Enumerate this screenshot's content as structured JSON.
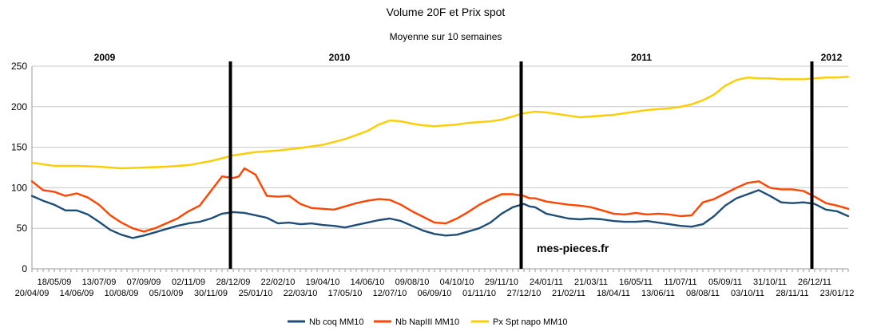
{
  "chart_data": {
    "type": "line",
    "title": "Volume 20F et Prix spot",
    "subtitle": "Moyenne sur 10 semaines",
    "ylim": [
      0,
      250
    ],
    "yticks": [
      0,
      50,
      100,
      150,
      200,
      250
    ],
    "grid": "horizontal",
    "legend": "bottom",
    "watermark": "mes-pieces.fr",
    "week_count": 146,
    "xtick_labels": [
      {
        "label": "20/04/09",
        "week": 0
      },
      {
        "label": "18/05/09",
        "week": 4
      },
      {
        "label": "14/06/09",
        "week": 8
      },
      {
        "label": "13/07/09",
        "week": 12
      },
      {
        "label": "10/08/09",
        "week": 16
      },
      {
        "label": "07/09/09",
        "week": 20
      },
      {
        "label": "05/10/09",
        "week": 24
      },
      {
        "label": "02/11/09",
        "week": 28
      },
      {
        "label": "30/11/09",
        "week": 32
      },
      {
        "label": "28/12/09",
        "week": 36
      },
      {
        "label": "25/01/10",
        "week": 40
      },
      {
        "label": "22/02/10",
        "week": 44
      },
      {
        "label": "22/03/10",
        "week": 48
      },
      {
        "label": "19/04/10",
        "week": 52
      },
      {
        "label": "17/05/10",
        "week": 56
      },
      {
        "label": "14/06/10",
        "week": 60
      },
      {
        "label": "12/07/10",
        "week": 64
      },
      {
        "label": "09/08/10",
        "week": 68
      },
      {
        "label": "06/09/10",
        "week": 72
      },
      {
        "label": "04/10/10",
        "week": 76
      },
      {
        "label": "01/11/10",
        "week": 80
      },
      {
        "label": "29/11/10",
        "week": 84
      },
      {
        "label": "27/12/10",
        "week": 88
      },
      {
        "label": "24/01/11",
        "week": 92
      },
      {
        "label": "21/02/11",
        "week": 96
      },
      {
        "label": "21/03/11",
        "week": 100
      },
      {
        "label": "18/04/11",
        "week": 104
      },
      {
        "label": "16/05/11",
        "week": 108
      },
      {
        "label": "13/06/11",
        "week": 112
      },
      {
        "label": "11/07/11",
        "week": 116
      },
      {
        "label": "08/08/11",
        "week": 120
      },
      {
        "label": "05/09/11",
        "week": 124
      },
      {
        "label": "03/10/11",
        "week": 128
      },
      {
        "label": "31/10/11",
        "week": 132
      },
      {
        "label": "28/11/11",
        "week": 136
      },
      {
        "label": "26/12/11",
        "week": 140
      },
      {
        "label": "23/01/12",
        "week": 144
      }
    ],
    "year_markers": [
      {
        "label": "2009",
        "label_week": 13,
        "line_week": null
      },
      {
        "label": "2010",
        "label_week": 55,
        "line_week": 35.5
      },
      {
        "label": "2011",
        "label_week": 109,
        "line_week": 87.5
      },
      {
        "label": "2012",
        "label_week": 143,
        "line_week": 139.5
      }
    ],
    "series": [
      {
        "name": "Nb coq MM10",
        "color": "#1f4e79",
        "points": [
          [
            0,
            90
          ],
          [
            2,
            84
          ],
          [
            4,
            79
          ],
          [
            6,
            72
          ],
          [
            8,
            72
          ],
          [
            10,
            67
          ],
          [
            12,
            58
          ],
          [
            14,
            48
          ],
          [
            16,
            42
          ],
          [
            18,
            38
          ],
          [
            20,
            41
          ],
          [
            22,
            45
          ],
          [
            24,
            49
          ],
          [
            26,
            53
          ],
          [
            28,
            56
          ],
          [
            30,
            58
          ],
          [
            32,
            62
          ],
          [
            34,
            68
          ],
          [
            36,
            70
          ],
          [
            38,
            69
          ],
          [
            40,
            66
          ],
          [
            42,
            63
          ],
          [
            44,
            56
          ],
          [
            46,
            57
          ],
          [
            48,
            55
          ],
          [
            50,
            56
          ],
          [
            52,
            54
          ],
          [
            54,
            53
          ],
          [
            56,
            51
          ],
          [
            58,
            54
          ],
          [
            60,
            57
          ],
          [
            62,
            60
          ],
          [
            64,
            62
          ],
          [
            66,
            59
          ],
          [
            68,
            53
          ],
          [
            70,
            47
          ],
          [
            72,
            43
          ],
          [
            74,
            41
          ],
          [
            76,
            42
          ],
          [
            78,
            46
          ],
          [
            80,
            50
          ],
          [
            82,
            57
          ],
          [
            84,
            68
          ],
          [
            86,
            76
          ],
          [
            88,
            80
          ],
          [
            89,
            77
          ],
          [
            90,
            76
          ],
          [
            92,
            68
          ],
          [
            94,
            65
          ],
          [
            96,
            62
          ],
          [
            98,
            61
          ],
          [
            100,
            62
          ],
          [
            102,
            61
          ],
          [
            104,
            59
          ],
          [
            106,
            58
          ],
          [
            108,
            58
          ],
          [
            110,
            59
          ],
          [
            112,
            57
          ],
          [
            114,
            55
          ],
          [
            116,
            53
          ],
          [
            118,
            52
          ],
          [
            120,
            55
          ],
          [
            122,
            65
          ],
          [
            124,
            78
          ],
          [
            126,
            87
          ],
          [
            128,
            92
          ],
          [
            130,
            97
          ],
          [
            132,
            90
          ],
          [
            134,
            82
          ],
          [
            136,
            81
          ],
          [
            138,
            82
          ],
          [
            140,
            80
          ],
          [
            142,
            73
          ],
          [
            144,
            71
          ],
          [
            146,
            65
          ]
        ]
      },
      {
        "name": "Nb NapIII MM10",
        "color": "#ff4500",
        "points": [
          [
            0,
            108
          ],
          [
            2,
            97
          ],
          [
            4,
            95
          ],
          [
            6,
            90
          ],
          [
            8,
            93
          ],
          [
            10,
            88
          ],
          [
            12,
            79
          ],
          [
            14,
            66
          ],
          [
            16,
            57
          ],
          [
            18,
            50
          ],
          [
            20,
            46
          ],
          [
            22,
            50
          ],
          [
            24,
            56
          ],
          [
            26,
            62
          ],
          [
            28,
            71
          ],
          [
            30,
            78
          ],
          [
            32,
            96
          ],
          [
            34,
            114
          ],
          [
            36,
            112
          ],
          [
            37,
            114
          ],
          [
            38,
            124
          ],
          [
            40,
            116
          ],
          [
            42,
            90
          ],
          [
            44,
            89
          ],
          [
            46,
            90
          ],
          [
            48,
            80
          ],
          [
            50,
            75
          ],
          [
            52,
            74
          ],
          [
            54,
            73
          ],
          [
            56,
            77
          ],
          [
            58,
            81
          ],
          [
            60,
            84
          ],
          [
            62,
            86
          ],
          [
            64,
            85
          ],
          [
            66,
            79
          ],
          [
            68,
            71
          ],
          [
            70,
            64
          ],
          [
            72,
            57
          ],
          [
            74,
            56
          ],
          [
            76,
            62
          ],
          [
            78,
            70
          ],
          [
            80,
            79
          ],
          [
            82,
            86
          ],
          [
            84,
            92
          ],
          [
            86,
            92
          ],
          [
            88,
            90
          ],
          [
            89,
            87
          ],
          [
            90,
            87
          ],
          [
            92,
            83
          ],
          [
            94,
            81
          ],
          [
            96,
            79
          ],
          [
            98,
            78
          ],
          [
            100,
            76
          ],
          [
            102,
            72
          ],
          [
            104,
            68
          ],
          [
            106,
            67
          ],
          [
            108,
            69
          ],
          [
            110,
            67
          ],
          [
            112,
            68
          ],
          [
            114,
            67
          ],
          [
            116,
            65
          ],
          [
            118,
            66
          ],
          [
            120,
            82
          ],
          [
            122,
            86
          ],
          [
            124,
            93
          ],
          [
            126,
            100
          ],
          [
            128,
            106
          ],
          [
            130,
            108
          ],
          [
            132,
            100
          ],
          [
            134,
            98
          ],
          [
            136,
            98
          ],
          [
            138,
            96
          ],
          [
            140,
            89
          ],
          [
            142,
            81
          ],
          [
            144,
            78
          ],
          [
            146,
            74
          ]
        ]
      },
      {
        "name": "Px Spt napo MM10",
        "color": "#ffcc00",
        "points": [
          [
            0,
            131
          ],
          [
            4,
            127
          ],
          [
            8,
            127
          ],
          [
            12,
            126
          ],
          [
            16,
            124
          ],
          [
            20,
            125
          ],
          [
            24,
            126
          ],
          [
            28,
            128
          ],
          [
            32,
            133
          ],
          [
            36,
            140
          ],
          [
            40,
            144
          ],
          [
            44,
            146
          ],
          [
            48,
            149
          ],
          [
            52,
            153
          ],
          [
            56,
            160
          ],
          [
            60,
            170
          ],
          [
            62,
            178
          ],
          [
            64,
            183
          ],
          [
            66,
            182
          ],
          [
            68,
            179
          ],
          [
            70,
            177
          ],
          [
            72,
            176
          ],
          [
            74,
            177
          ],
          [
            76,
            178
          ],
          [
            78,
            180
          ],
          [
            80,
            181
          ],
          [
            82,
            182
          ],
          [
            84,
            184
          ],
          [
            86,
            188
          ],
          [
            88,
            192
          ],
          [
            90,
            194
          ],
          [
            92,
            193
          ],
          [
            94,
            191
          ],
          [
            96,
            189
          ],
          [
            98,
            187
          ],
          [
            100,
            188
          ],
          [
            102,
            189
          ],
          [
            104,
            190
          ],
          [
            106,
            192
          ],
          [
            108,
            194
          ],
          [
            110,
            196
          ],
          [
            112,
            197
          ],
          [
            114,
            198
          ],
          [
            116,
            200
          ],
          [
            118,
            203
          ],
          [
            120,
            208
          ],
          [
            122,
            215
          ],
          [
            124,
            226
          ],
          [
            126,
            233
          ],
          [
            128,
            236
          ],
          [
            130,
            235
          ],
          [
            132,
            235
          ],
          [
            134,
            234
          ],
          [
            136,
            234
          ],
          [
            138,
            234
          ],
          [
            140,
            235
          ],
          [
            142,
            236
          ],
          [
            144,
            236
          ],
          [
            146,
            237
          ]
        ]
      }
    ]
  }
}
